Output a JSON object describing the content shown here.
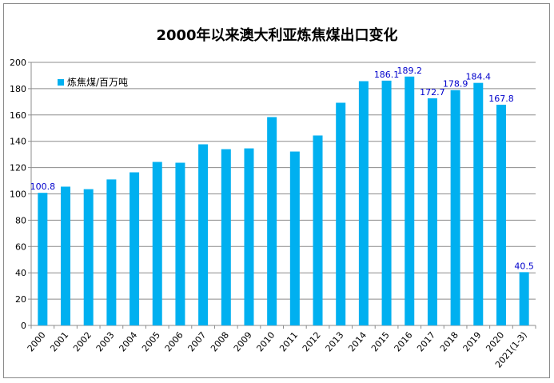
{
  "chart_data": {
    "type": "bar",
    "title": "2000年以来澳大利亚炼焦煤出口变化",
    "categories": [
      "2000",
      "2001",
      "2002",
      "2003",
      "2004",
      "2005",
      "2006",
      "2007",
      "2008",
      "2009",
      "2010",
      "2011",
      "2012",
      "2013",
      "2014",
      "2015",
      "2016",
      "2017",
      "2018",
      "2019",
      "2020",
      "2021(1-3)"
    ],
    "series": [
      {
        "name": "炼焦煤/百万吨",
        "values": [
          100.8,
          105.5,
          103.6,
          111,
          116.4,
          124.3,
          123.7,
          137.7,
          134,
          134.6,
          158.4,
          132.2,
          144.4,
          169.3,
          185.7,
          186.1,
          189.2,
          172.7,
          178.9,
          184.4,
          167.8,
          40.5
        ],
        "data_labels": {
          "0": "100.8",
          "15": "186.1",
          "16": "189.2",
          "17": "172.7",
          "18": "178.9",
          "19": "184.4",
          "20": "167.8",
          "21": "40.5"
        }
      }
    ],
    "ylim": [
      0,
      200
    ],
    "yticks": [
      0,
      20,
      40,
      60,
      80,
      100,
      120,
      140,
      160,
      180,
      200
    ],
    "grid": true,
    "legend_position": "top-left",
    "colors": {
      "bar": "#00b0f0",
      "data_label": "#0000cc",
      "grid": "#8c8c8c"
    }
  }
}
